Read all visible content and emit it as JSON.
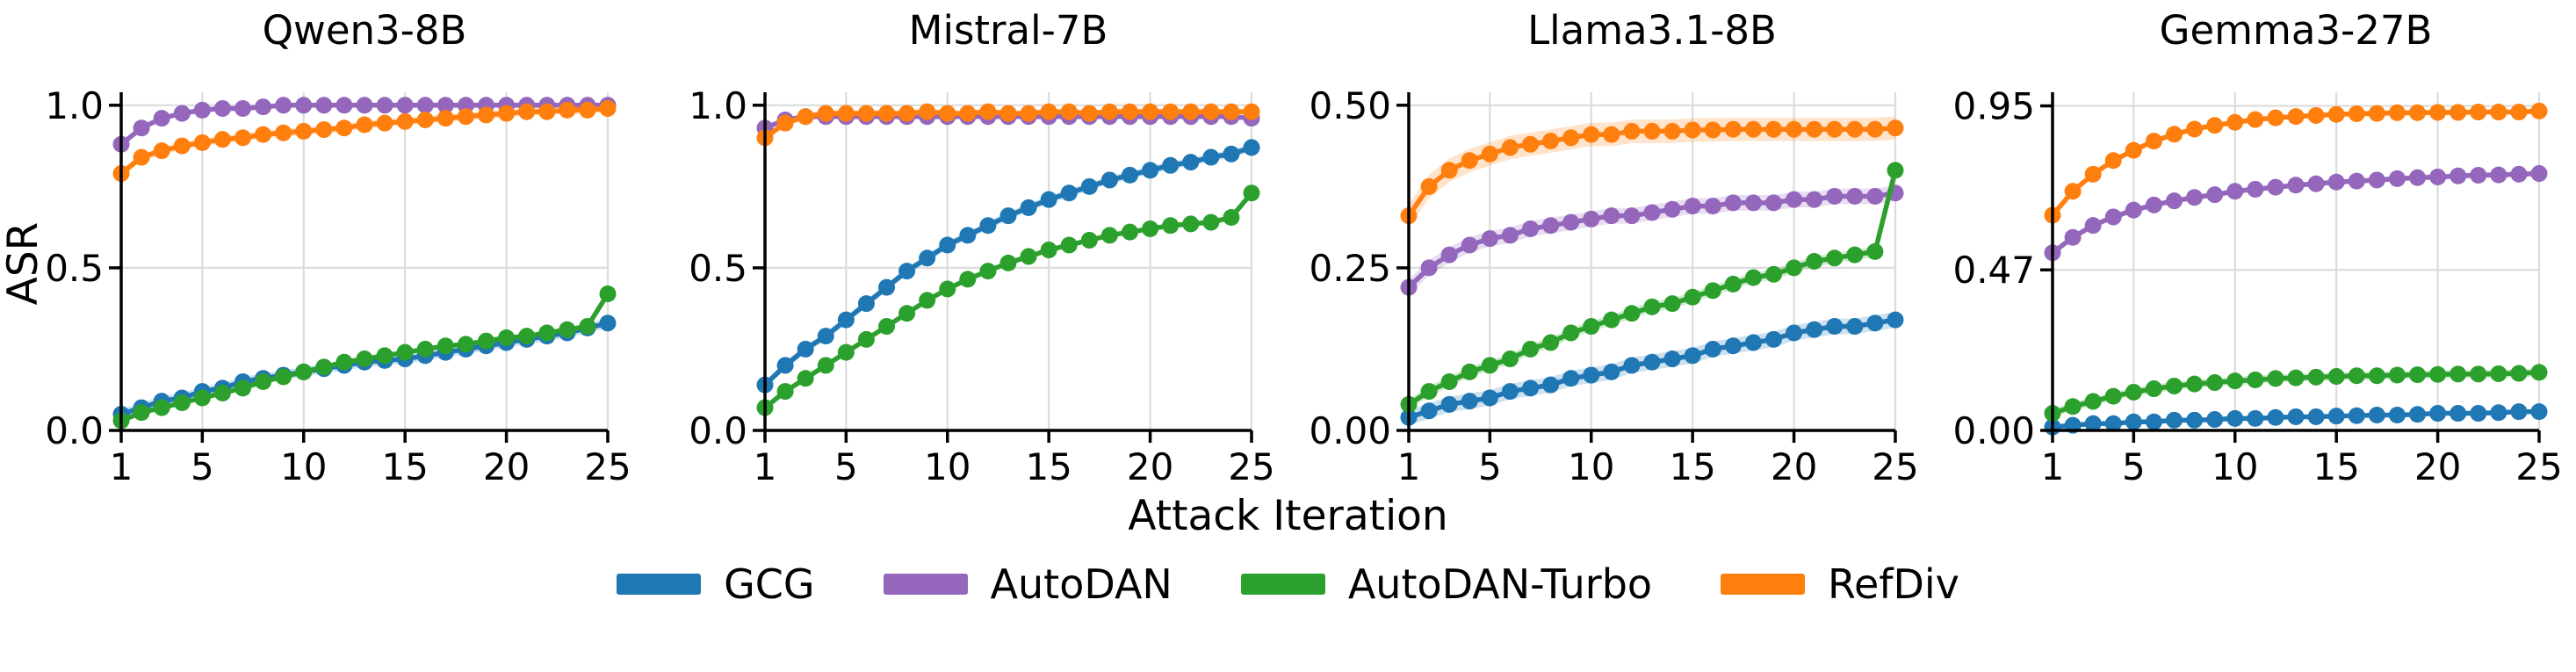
{
  "figure": {
    "xlabel": "Attack Iteration",
    "ylabel": "ASR"
  },
  "legend": {
    "items": [
      {
        "label": "GCG",
        "color": "#1f77b4"
      },
      {
        "label": "AutoDAN",
        "color": "#9467bd"
      },
      {
        "label": "AutoDAN-Turbo",
        "color": "#2ca02c"
      },
      {
        "label": "RefDiv",
        "color": "#ff7f0e"
      }
    ]
  },
  "colors": {
    "grid": "#dcdcdc",
    "axis": "#000000",
    "background": "#ffffff"
  },
  "x_iterations": [
    1,
    2,
    3,
    4,
    5,
    6,
    7,
    8,
    9,
    10,
    11,
    12,
    13,
    14,
    15,
    16,
    17,
    18,
    19,
    20,
    21,
    22,
    23,
    24,
    25
  ],
  "chart_data": [
    {
      "type": "line",
      "title": "Qwen3-8B",
      "xlabel": "Attack Iteration",
      "ylabel": "ASR",
      "xticks": [
        1,
        5,
        10,
        15,
        20,
        25
      ],
      "ytick_values": [
        0.0,
        0.5,
        1.0
      ],
      "ytick_labels": [
        "0.0",
        "0.5",
        "1.0"
      ],
      "ylim": [
        0,
        1.04
      ],
      "grid": true,
      "series": [
        {
          "name": "GCG",
          "color": "#1f77b4",
          "band": 0.015,
          "values": [
            0.05,
            0.07,
            0.09,
            0.1,
            0.12,
            0.13,
            0.15,
            0.16,
            0.17,
            0.18,
            0.19,
            0.2,
            0.21,
            0.215,
            0.22,
            0.23,
            0.24,
            0.25,
            0.26,
            0.27,
            0.28,
            0.29,
            0.3,
            0.315,
            0.33
          ]
        },
        {
          "name": "AutoDAN",
          "color": "#9467bd",
          "band": 0.008,
          "values": [
            0.88,
            0.93,
            0.96,
            0.975,
            0.985,
            0.99,
            0.99,
            0.995,
            1.0,
            1.0,
            1.0,
            1.0,
            1.0,
            1.0,
            1.0,
            1.0,
            1.0,
            1.0,
            1.0,
            1.0,
            1.0,
            1.0,
            1.0,
            1.0,
            1.0
          ]
        },
        {
          "name": "AutoDAN-Turbo",
          "color": "#2ca02c",
          "band": 0.006,
          "values": [
            0.03,
            0.055,
            0.07,
            0.085,
            0.1,
            0.115,
            0.13,
            0.15,
            0.165,
            0.18,
            0.195,
            0.21,
            0.22,
            0.23,
            0.24,
            0.25,
            0.26,
            0.265,
            0.275,
            0.285,
            0.29,
            0.3,
            0.31,
            0.32,
            0.42
          ]
        },
        {
          "name": "RefDiv",
          "color": "#ff7f0e",
          "band": 0.012,
          "values": [
            0.79,
            0.84,
            0.86,
            0.875,
            0.885,
            0.895,
            0.9,
            0.91,
            0.915,
            0.92,
            0.925,
            0.93,
            0.94,
            0.945,
            0.95,
            0.955,
            0.96,
            0.965,
            0.97,
            0.975,
            0.98,
            0.98,
            0.985,
            0.985,
            0.99
          ]
        }
      ]
    },
    {
      "type": "line",
      "title": "Mistral-7B",
      "xlabel": "Attack Iteration",
      "ylabel": "ASR",
      "xticks": [
        1,
        5,
        10,
        15,
        20,
        25
      ],
      "ytick_values": [
        0.0,
        0.5,
        1.0
      ],
      "ytick_labels": [
        "0.0",
        "0.5",
        "1.0"
      ],
      "ylim": [
        0,
        1.04
      ],
      "grid": true,
      "series": [
        {
          "name": "GCG",
          "color": "#1f77b4",
          "band": 0.012,
          "values": [
            0.14,
            0.2,
            0.25,
            0.29,
            0.34,
            0.39,
            0.44,
            0.49,
            0.53,
            0.57,
            0.6,
            0.63,
            0.66,
            0.685,
            0.71,
            0.73,
            0.75,
            0.77,
            0.785,
            0.8,
            0.815,
            0.825,
            0.84,
            0.85,
            0.87
          ]
        },
        {
          "name": "AutoDAN",
          "color": "#9467bd",
          "band": 0.006,
          "values": [
            0.93,
            0.955,
            0.965,
            0.965,
            0.965,
            0.965,
            0.965,
            0.965,
            0.965,
            0.965,
            0.965,
            0.965,
            0.965,
            0.965,
            0.965,
            0.965,
            0.965,
            0.965,
            0.965,
            0.965,
            0.965,
            0.965,
            0.965,
            0.965,
            0.96
          ]
        },
        {
          "name": "AutoDAN-Turbo",
          "color": "#2ca02c",
          "band": 0.008,
          "values": [
            0.07,
            0.12,
            0.16,
            0.2,
            0.24,
            0.28,
            0.32,
            0.36,
            0.4,
            0.435,
            0.465,
            0.49,
            0.515,
            0.535,
            0.555,
            0.57,
            0.585,
            0.6,
            0.61,
            0.62,
            0.63,
            0.635,
            0.64,
            0.655,
            0.73
          ]
        },
        {
          "name": "RefDiv",
          "color": "#ff7f0e",
          "band": 0.01,
          "values": [
            0.9,
            0.945,
            0.965,
            0.975,
            0.975,
            0.975,
            0.975,
            0.975,
            0.98,
            0.975,
            0.975,
            0.98,
            0.975,
            0.975,
            0.98,
            0.98,
            0.975,
            0.98,
            0.98,
            0.98,
            0.98,
            0.98,
            0.98,
            0.98,
            0.98
          ]
        }
      ]
    },
    {
      "type": "line",
      "title": "Llama3.1-8B",
      "xlabel": "Attack Iteration",
      "ylabel": "ASR",
      "xticks": [
        1,
        5,
        10,
        15,
        20,
        25
      ],
      "ytick_values": [
        0.0,
        0.25,
        0.5
      ],
      "ytick_labels": [
        "0.00",
        "0.25",
        "0.50"
      ],
      "ylim": [
        0,
        0.52
      ],
      "grid": true,
      "series": [
        {
          "name": "GCG",
          "color": "#1f77b4",
          "band": 0.012,
          "values": [
            0.02,
            0.03,
            0.04,
            0.045,
            0.05,
            0.06,
            0.065,
            0.07,
            0.08,
            0.085,
            0.09,
            0.1,
            0.105,
            0.11,
            0.115,
            0.125,
            0.13,
            0.135,
            0.14,
            0.15,
            0.155,
            0.16,
            0.16,
            0.165,
            0.17
          ]
        },
        {
          "name": "AutoDAN",
          "color": "#9467bd",
          "band": 0.012,
          "values": [
            0.22,
            0.25,
            0.27,
            0.285,
            0.295,
            0.3,
            0.31,
            0.315,
            0.32,
            0.325,
            0.33,
            0.33,
            0.335,
            0.34,
            0.345,
            0.345,
            0.35,
            0.35,
            0.35,
            0.355,
            0.355,
            0.36,
            0.36,
            0.36,
            0.365
          ]
        },
        {
          "name": "AutoDAN-Turbo",
          "color": "#2ca02c",
          "band": 0.008,
          "values": [
            0.04,
            0.06,
            0.075,
            0.09,
            0.1,
            0.11,
            0.125,
            0.135,
            0.15,
            0.16,
            0.17,
            0.18,
            0.19,
            0.195,
            0.205,
            0.215,
            0.225,
            0.235,
            0.24,
            0.25,
            0.26,
            0.265,
            0.27,
            0.275,
            0.4
          ]
        },
        {
          "name": "RefDiv",
          "color": "#ff7f0e",
          "band": 0.018,
          "values": [
            0.33,
            0.375,
            0.4,
            0.415,
            0.425,
            0.435,
            0.44,
            0.445,
            0.45,
            0.455,
            0.455,
            0.46,
            0.46,
            0.46,
            0.462,
            0.462,
            0.463,
            0.463,
            0.463,
            0.463,
            0.463,
            0.463,
            0.463,
            0.463,
            0.465
          ]
        }
      ]
    },
    {
      "type": "line",
      "title": "Gemma3-27B",
      "xlabel": "Attack Iteration",
      "ylabel": "ASR",
      "xticks": [
        1,
        5,
        10,
        15,
        20,
        25
      ],
      "ytick_values": [
        0.0,
        0.47,
        0.95
      ],
      "ytick_labels": [
        "0.00",
        "0.47",
        "0.95"
      ],
      "ylim": [
        0,
        0.99
      ],
      "grid": true,
      "series": [
        {
          "name": "GCG",
          "color": "#1f77b4",
          "band": 0.006,
          "values": [
            0.01,
            0.015,
            0.02,
            0.02,
            0.025,
            0.025,
            0.03,
            0.03,
            0.032,
            0.035,
            0.035,
            0.038,
            0.04,
            0.04,
            0.042,
            0.043,
            0.045,
            0.045,
            0.047,
            0.05,
            0.05,
            0.05,
            0.052,
            0.055,
            0.055
          ]
        },
        {
          "name": "AutoDAN",
          "color": "#9467bd",
          "band": 0.008,
          "values": [
            0.52,
            0.565,
            0.6,
            0.625,
            0.645,
            0.66,
            0.672,
            0.682,
            0.69,
            0.7,
            0.706,
            0.712,
            0.718,
            0.722,
            0.727,
            0.73,
            0.733,
            0.737,
            0.74,
            0.742,
            0.745,
            0.747,
            0.748,
            0.75,
            0.752
          ]
        },
        {
          "name": "AutoDAN-Turbo",
          "color": "#2ca02c",
          "band": 0.012,
          "values": [
            0.05,
            0.07,
            0.085,
            0.1,
            0.112,
            0.122,
            0.13,
            0.136,
            0.14,
            0.145,
            0.148,
            0.152,
            0.154,
            0.156,
            0.158,
            0.16,
            0.16,
            0.162,
            0.163,
            0.164,
            0.165,
            0.165,
            0.166,
            0.167,
            0.17
          ]
        },
        {
          "name": "RefDiv",
          "color": "#ff7f0e",
          "band": 0.008,
          "values": [
            0.63,
            0.7,
            0.75,
            0.79,
            0.82,
            0.847,
            0.867,
            0.882,
            0.893,
            0.902,
            0.91,
            0.915,
            0.919,
            0.922,
            0.925,
            0.927,
            0.928,
            0.93,
            0.93,
            0.931,
            0.931,
            0.932,
            0.932,
            0.932,
            0.935
          ]
        }
      ]
    }
  ]
}
